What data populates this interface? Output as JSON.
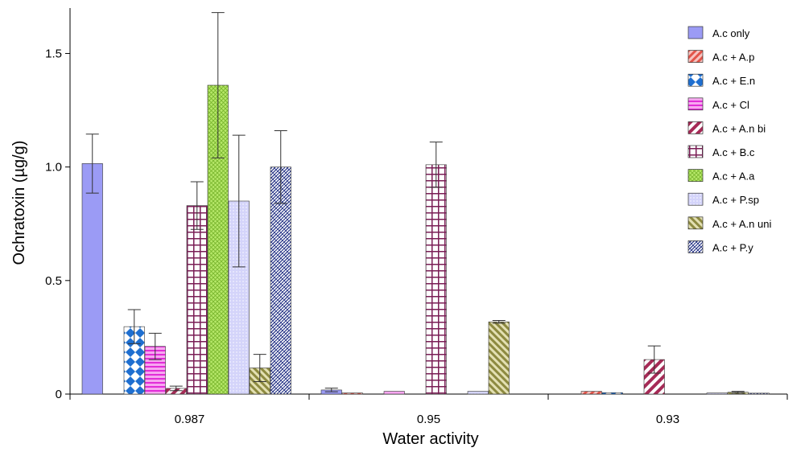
{
  "chart_data": {
    "type": "bar",
    "title": "",
    "xlabel": "Water activity",
    "ylabel": "Ochratoxin (µg/g)",
    "ylim": [
      0,
      1.7
    ],
    "yticks": [
      {
        "value": 0,
        "label": "0"
      },
      {
        "value": 0.5,
        "label": "0.5"
      },
      {
        "value": 1.0,
        "label": "1.0"
      },
      {
        "value": 1.5,
        "label": "1.5"
      }
    ],
    "categories": [
      "0.987",
      "0.95",
      "0.93"
    ],
    "legend_position": "top-right",
    "grid": false,
    "series": [
      {
        "name": "A.c only",
        "pattern": "solid-blue",
        "values": [
          1.015,
          0.018,
          0.0
        ],
        "errors": [
          0.13,
          0.008,
          0.0
        ]
      },
      {
        "name": "A.c + A.p",
        "pattern": "diag-red",
        "values": [
          0.0,
          0.005,
          0.012
        ],
        "errors": [
          0.0,
          0.0,
          0.0
        ]
      },
      {
        "name": "A.c + E.n",
        "pattern": "diamond-blue",
        "values": [
          0.297,
          0.0,
          0.006
        ],
        "errors": [
          0.075,
          0.0,
          0.0
        ]
      },
      {
        "name": "A.c + Cl",
        "pattern": "hstripe-magenta",
        "values": [
          0.21,
          0.012,
          0.0
        ],
        "errors": [
          0.058,
          0.0,
          0.0
        ]
      },
      {
        "name": "A.c + A.n bi",
        "pattern": "diag-maroon",
        "values": [
          0.025,
          0.0,
          0.152
        ],
        "errors": [
          0.01,
          0.0,
          0.06
        ]
      },
      {
        "name": "A.c + B.c",
        "pattern": "grid-maroon",
        "values": [
          0.83,
          1.01,
          0.0
        ],
        "errors": [
          0.105,
          0.1,
          0.0
        ]
      },
      {
        "name": "A.c + A.a",
        "pattern": "cross-green",
        "values": [
          1.36,
          0.0,
          0.0
        ],
        "errors": [
          0.32,
          0.0,
          0.0
        ]
      },
      {
        "name": "A.c + P.sp",
        "pattern": "dots-lavender",
        "values": [
          0.85,
          0.012,
          0.005
        ],
        "errors": [
          0.29,
          0.0,
          0.0
        ]
      },
      {
        "name": "A.c + A.n uni",
        "pattern": "diag-olive",
        "values": [
          0.115,
          0.318,
          0.008
        ],
        "errors": [
          0.06,
          0.006,
          0.004
        ]
      },
      {
        "name": "A.c + P.y",
        "pattern": "weave-navy",
        "values": [
          1.0,
          0.0,
          0.004
        ],
        "errors": [
          0.16,
          0.0,
          0.0
        ]
      }
    ]
  }
}
